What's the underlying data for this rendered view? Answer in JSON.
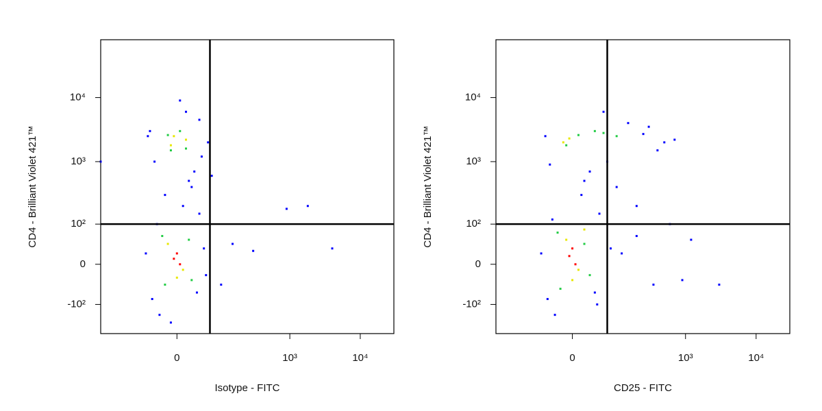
{
  "chart_data": [
    {
      "type": "scatter",
      "xlabel": "Isotype - FITC",
      "ylabel": "CD4 - Brilliant Violet 421™",
      "scale": {
        "type": "asinh",
        "cofactor": 50
      },
      "xlim": [
        -300,
        30000
      ],
      "ylim": [
        -300,
        80000
      ],
      "xticks": [
        0,
        {
          "value": 1000,
          "label": "10³"
        },
        {
          "value": 10000,
          "label": "10⁴"
        }
      ],
      "yticks": [
        {
          "value": -100,
          "label": "-10²"
        },
        0,
        {
          "value": 100,
          "label": "10²"
        },
        {
          "value": 1000,
          "label": "10³"
        },
        {
          "value": 10000,
          "label": "10⁴"
        }
      ],
      "gate": {
        "x": 65,
        "y": 100
      },
      "series": [
        {
          "color": "#0000ff",
          "x": [
            -60,
            -45,
            -35,
            -30,
            35,
            40,
            50,
            55,
            -50,
            45,
            20,
            -20,
            30,
            10,
            25,
            15,
            40,
            -40,
            60,
            -55,
            150,
            300,
            1800,
            4000,
            900,
            100,
            -300,
            70,
            -10,
            5
          ],
          "y": [
            20,
            -80,
            100,
            -150,
            -60,
            150,
            30,
            -20,
            3000,
            1200,
            500,
            300,
            700,
            200,
            400,
            6000,
            4500,
            1000,
            2000,
            2500,
            40,
            25,
            200,
            30,
            180,
            -40,
            1000,
            600,
            -200,
            9000
          ]
        },
        {
          "color": "#22cc44",
          "x": [
            -25,
            20,
            -20,
            25,
            -10,
            15,
            5,
            -15
          ],
          "y": [
            60,
            50,
            -40,
            -30,
            1500,
            1600,
            3000,
            2600
          ]
        },
        {
          "color": "#e8e800",
          "x": [
            -15,
            10,
            -10,
            15,
            0,
            -5
          ],
          "y": [
            40,
            -10,
            1800,
            2200,
            -25,
            2500
          ]
        },
        {
          "color": "#ff0000",
          "x": [
            -5,
            0,
            5
          ],
          "y": [
            10,
            20,
            0
          ]
        }
      ]
    },
    {
      "type": "scatter",
      "xlabel": "CD25 - FITC",
      "ylabel": "CD4 - Brilliant Violet 421™",
      "scale": {
        "type": "asinh",
        "cofactor": 50
      },
      "xlim": [
        -300,
        30000
      ],
      "ylim": [
        -300,
        80000
      ],
      "xticks": [
        0,
        {
          "value": 1000,
          "label": "10³"
        },
        {
          "value": 10000,
          "label": "10⁴"
        }
      ],
      "yticks": [
        {
          "value": -100,
          "label": "-10²"
        },
        0,
        {
          "value": 100,
          "label": "10²"
        },
        {
          "value": 1000,
          "label": "10³"
        },
        {
          "value": 10000,
          "label": "10⁴"
        }
      ],
      "gate": {
        "x": 70,
        "y": 100
      },
      "series": [
        {
          "color": "#0000ff",
          "x": [
            -60,
            -45,
            -35,
            -30,
            40,
            50,
            80,
            120,
            200,
            350,
            600,
            900,
            1200,
            300,
            500,
            150,
            250,
            60,
            -50,
            20,
            30,
            15,
            100,
            200,
            400,
            3000,
            -40,
            45,
            70,
            700
          ],
          "y": [
            20,
            -80,
            120,
            -150,
            -60,
            150,
            30,
            20,
            60,
            -40,
            100,
            -30,
            50,
            3500,
            2000,
            4000,
            2700,
            6000,
            2500,
            500,
            700,
            300,
            400,
            200,
            1500,
            -40,
            900,
            -100,
            1000,
            2200
          ]
        },
        {
          "color": "#22cc44",
          "x": [
            -25,
            20,
            -20,
            30,
            -10,
            10,
            40,
            60,
            100
          ],
          "y": [
            70,
            40,
            -50,
            -20,
            1800,
            2600,
            3000,
            2800,
            2500
          ]
        },
        {
          "color": "#e8e800",
          "x": [
            -10,
            10,
            0,
            -5,
            -15,
            20
          ],
          "y": [
            50,
            -10,
            -30,
            2300,
            2000,
            80
          ]
        },
        {
          "color": "#ff0000",
          "x": [
            -5,
            0,
            5
          ],
          "y": [
            15,
            30,
            0
          ]
        }
      ]
    }
  ]
}
